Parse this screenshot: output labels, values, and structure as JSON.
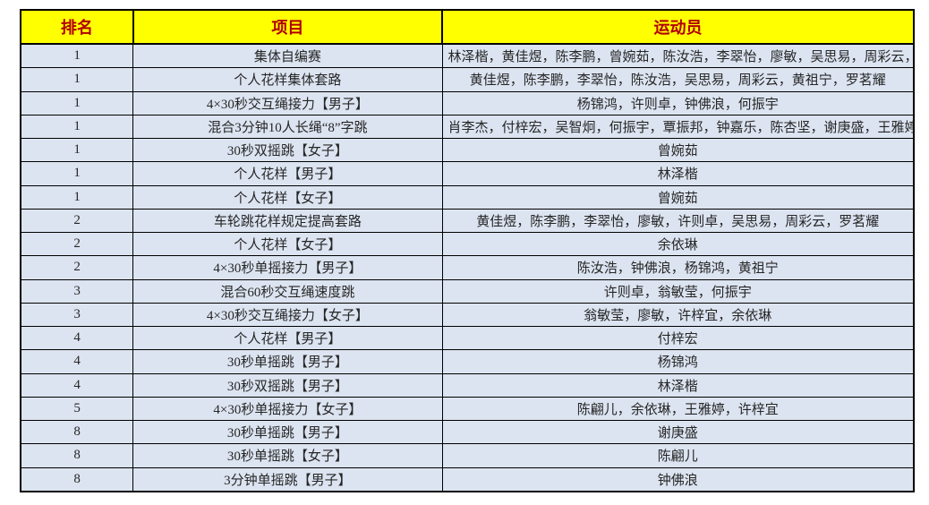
{
  "table": {
    "columns": [
      "排名",
      "项目",
      "运动员"
    ],
    "rows": [
      {
        "rank": "1",
        "event": "集体自编赛",
        "athletes": "林泽楷，黄佳煜，陈李鹏，曾婉茹，陈汝浩，李翠怡，廖敏，吴思易，周彩云，罗茗耀"
      },
      {
        "rank": "1",
        "event": "个人花样集体套路",
        "athletes": "黄佳煜，陈李鹏，李翠怡，陈汝浩，吴思易，周彩云，黄祖宁，罗茗耀"
      },
      {
        "rank": "1",
        "event": "4×30秒交互绳接力【男子】",
        "athletes": "杨锦鸿，许则卓，钟佛浪，何振宇"
      },
      {
        "rank": "1",
        "event": "混合3分钟10人长绳“8”字跳",
        "athletes": "肖李杰，付梓宏，吴智炯，何振宇，覃振邦，钟嘉乐，陈杏坚，谢庚盛，王雅婷，黄祖宁"
      },
      {
        "rank": "1",
        "event": "30秒双摇跳【女子】",
        "athletes": "曾婉茹"
      },
      {
        "rank": "1",
        "event": "个人花样【男子】",
        "athletes": "林泽楷"
      },
      {
        "rank": "1",
        "event": "个人花样【女子】",
        "athletes": "曾婉茹"
      },
      {
        "rank": "2",
        "event": "车轮跳花样规定提高套路",
        "athletes": "黄佳煜，陈李鹏，李翠怡，廖敏，许则卓，吴思易，周彩云，罗茗耀"
      },
      {
        "rank": "2",
        "event": "个人花样【女子】",
        "athletes": "余依琳"
      },
      {
        "rank": "2",
        "event": "4×30秒单摇接力【男子】",
        "athletes": "陈汝浩，钟佛浪，杨锦鸿，黄祖宁"
      },
      {
        "rank": "3",
        "event": "混合60秒交互绳速度跳",
        "athletes": "许则卓，翁敏莹，何振宇"
      },
      {
        "rank": "3",
        "event": "4×30秒交互绳接力【女子】",
        "athletes": "翁敏莹，廖敏，许梓宜，余依琳"
      },
      {
        "rank": "4",
        "event": "个人花样【男子】",
        "athletes": "付梓宏"
      },
      {
        "rank": "4",
        "event": "30秒单摇跳【男子】",
        "athletes": "杨锦鸿"
      },
      {
        "rank": "4",
        "event": "30秒双摇跳【男子】",
        "athletes": "林泽楷"
      },
      {
        "rank": "5",
        "event": "4×30秒单摇接力【女子】",
        "athletes": "陈翩儿，余依琳，王雅婷，许梓宜"
      },
      {
        "rank": "8",
        "event": "30秒单摇跳【男子】",
        "athletes": "谢庚盛"
      },
      {
        "rank": "8",
        "event": "30秒单摇跳【女子】",
        "athletes": "陈翩儿"
      },
      {
        "rank": "8",
        "event": "3分钟单摇跳【男子】",
        "athletes": "钟佛浪"
      }
    ]
  },
  "colors": {
    "header_bg": "#ffff00",
    "header_text": "#b00000",
    "row_bg": "#dce4f1",
    "body_text": "#262626",
    "border": "#000000",
    "page_bg": "#ffffff"
  }
}
